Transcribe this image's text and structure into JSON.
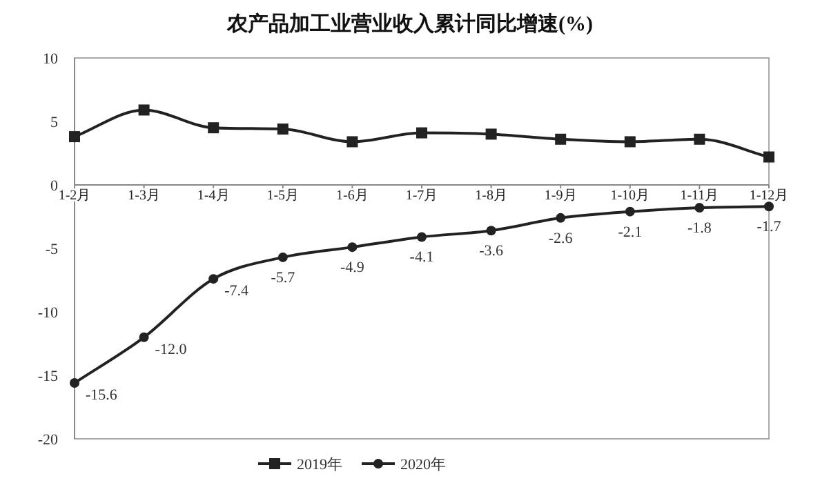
{
  "chart_data": {
    "type": "line",
    "title": "农产品加工业营业收入累计同比增速(%)",
    "categories": [
      "1-2月",
      "1-3月",
      "1-4月",
      "1-5月",
      "1-6月",
      "1-7月",
      "1-8月",
      "1-9月",
      "1-10月",
      "1-11月",
      "1-12月"
    ],
    "series": [
      {
        "name": "2019年",
        "color": "#222222",
        "marker": "square",
        "values": [
          3.8,
          5.9,
          4.5,
          4.4,
          3.4,
          4.1,
          4.0,
          3.6,
          3.4,
          3.6,
          2.2
        ]
      },
      {
        "name": "2020年",
        "color": "#222222",
        "marker": "circle",
        "values": [
          -15.6,
          -12.0,
          -7.4,
          -5.7,
          -4.9,
          -4.1,
          -3.6,
          -2.6,
          -2.1,
          -1.8,
          -1.7
        ],
        "value_labels": [
          "-15.6",
          "-12.0",
          "-7.4",
          "-5.7",
          "-4.9",
          "-4.1",
          "-3.6",
          "-2.6",
          "-2.1",
          "-1.8",
          "-1.7"
        ]
      }
    ],
    "ylim": [
      -20,
      10
    ],
    "yticks": [
      -20,
      -15,
      -10,
      -5,
      0,
      5,
      10
    ],
    "grid": false,
    "legend": "bottom",
    "line_style": "solid"
  }
}
